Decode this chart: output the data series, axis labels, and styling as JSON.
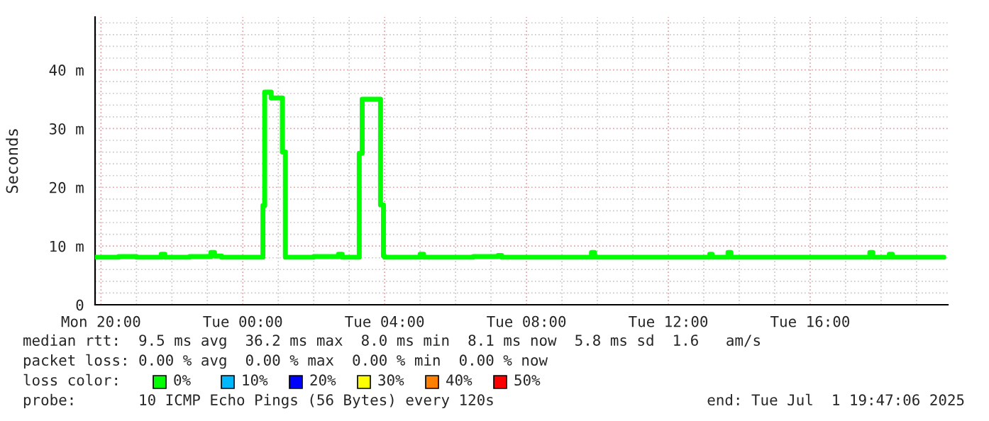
{
  "chart_data": {
    "type": "step",
    "ylabel": "Seconds",
    "x": [
      "2025-06-30T19:50",
      "2025-06-30T20:30",
      "2025-06-30T21:00",
      "2025-06-30T21:42",
      "2025-06-30T21:48",
      "2025-06-30T22:30",
      "2025-06-30T23:06",
      "2025-06-30T23:12",
      "2025-06-30T23:24",
      "2025-07-01T00:34",
      "2025-07-01T00:37",
      "2025-07-01T00:48",
      "2025-07-01T01:07",
      "2025-07-01T01:12",
      "2025-07-01T02:00",
      "2025-07-01T02:42",
      "2025-07-01T02:48",
      "2025-07-01T03:17",
      "2025-07-01T03:22",
      "2025-07-01T03:53",
      "2025-07-01T03:58",
      "2025-07-01T04:00",
      "2025-07-01T05:00",
      "2025-07-01T05:06",
      "2025-07-01T06:30",
      "2025-07-01T07:12",
      "2025-07-01T07:18",
      "2025-07-01T09:50",
      "2025-07-01T09:55",
      "2025-07-01T11:00",
      "2025-07-01T13:10",
      "2025-07-01T13:14",
      "2025-07-01T13:41",
      "2025-07-01T13:46",
      "2025-07-01T15:00",
      "2025-07-01T17:41",
      "2025-07-01T17:46",
      "2025-07-01T18:14",
      "2025-07-01T18:19",
      "2025-07-01T19:46"
    ],
    "series": [
      {
        "name": "0%",
        "color": "#00ff00",
        "values": [
          8.1,
          8.2,
          8.1,
          8.6,
          8.1,
          8.2,
          8.9,
          8.3,
          8.1,
          16.9,
          36.2,
          35.2,
          26.0,
          8.1,
          8.2,
          8.6,
          8.1,
          25.8,
          35.0,
          17.0,
          8.3,
          8.1,
          8.6,
          8.1,
          8.2,
          8.4,
          8.1,
          8.9,
          8.1,
          8.1,
          8.6,
          8.1,
          8.9,
          8.1,
          8.1,
          8.9,
          8.1,
          8.6,
          8.1,
          8.1
        ]
      },
      {
        "name": "10%",
        "color": "#00b8ff",
        "values": [
          null,
          null,
          null,
          null,
          null,
          null,
          null,
          null,
          null,
          null,
          null,
          null,
          null,
          null,
          null,
          null,
          null,
          null,
          null,
          null,
          null,
          null,
          null,
          null,
          null,
          null,
          null,
          null,
          null,
          null,
          null,
          null,
          null,
          null,
          null,
          null,
          null,
          null,
          null,
          null
        ]
      },
      {
        "name": "20%",
        "color": "#0000ff",
        "values": [
          null,
          null,
          null,
          null,
          null,
          null,
          null,
          null,
          null,
          null,
          null,
          null,
          null,
          null,
          null,
          null,
          null,
          null,
          null,
          null,
          null,
          null,
          null,
          null,
          null,
          null,
          null,
          null,
          null,
          null,
          null,
          null,
          null,
          null,
          null,
          null,
          null,
          null,
          null,
          null
        ]
      },
      {
        "name": "30%",
        "color": "#ffff00",
        "values": [
          null,
          null,
          null,
          null,
          null,
          null,
          null,
          null,
          null,
          null,
          null,
          null,
          null,
          null,
          null,
          null,
          null,
          null,
          null,
          null,
          null,
          null,
          null,
          null,
          null,
          null,
          null,
          null,
          null,
          null,
          null,
          null,
          null,
          null,
          null,
          null,
          null,
          null,
          null,
          null
        ]
      },
      {
        "name": "40%",
        "color": "#ff8000",
        "values": [
          null,
          null,
          null,
          null,
          null,
          null,
          null,
          null,
          null,
          null,
          null,
          null,
          null,
          null,
          null,
          null,
          null,
          null,
          null,
          null,
          null,
          null,
          null,
          null,
          null,
          null,
          null,
          null,
          null,
          null,
          null,
          null,
          null,
          null,
          null,
          null,
          null,
          null,
          null,
          null
        ]
      },
      {
        "name": "50%",
        "color": "#ff0000",
        "values": [
          null,
          null,
          null,
          null,
          null,
          null,
          null,
          null,
          null,
          null,
          null,
          null,
          null,
          null,
          null,
          null,
          null,
          null,
          null,
          null,
          null,
          null,
          null,
          null,
          null,
          null,
          null,
          null,
          null,
          null,
          null,
          null,
          null,
          null,
          null,
          null,
          null,
          null,
          null,
          null
        ]
      }
    ],
    "xlim": [
      "2025-06-30T19:50",
      "2025-07-01T19:53"
    ],
    "ylim": [
      0,
      49
    ],
    "xticks": [
      {
        "value": "2025-06-30T20:00",
        "label": "Mon 20:00"
      },
      {
        "value": "2025-06-30T21:00",
        "label": null
      },
      {
        "value": "2025-06-30T22:00",
        "label": null
      },
      {
        "value": "2025-06-30T23:00",
        "label": null
      },
      {
        "value": "2025-07-01T00:00",
        "label": "Tue 00:00"
      },
      {
        "value": "2025-07-01T01:00",
        "label": null
      },
      {
        "value": "2025-07-01T02:00",
        "label": null
      },
      {
        "value": "2025-07-01T03:00",
        "label": null
      },
      {
        "value": "2025-07-01T04:00",
        "label": "Tue 04:00"
      },
      {
        "value": "2025-07-01T05:00",
        "label": null
      },
      {
        "value": "2025-07-01T06:00",
        "label": null
      },
      {
        "value": "2025-07-01T07:00",
        "label": null
      },
      {
        "value": "2025-07-01T08:00",
        "label": "Tue 08:00"
      },
      {
        "value": "2025-07-01T09:00",
        "label": null
      },
      {
        "value": "2025-07-01T10:00",
        "label": null
      },
      {
        "value": "2025-07-01T11:00",
        "label": null
      },
      {
        "value": "2025-07-01T12:00",
        "label": "Tue 12:00"
      },
      {
        "value": "2025-07-01T13:00",
        "label": null
      },
      {
        "value": "2025-07-01T14:00",
        "label": null
      },
      {
        "value": "2025-07-01T15:00",
        "label": null
      },
      {
        "value": "2025-07-01T16:00",
        "label": "Tue 16:00"
      },
      {
        "value": "2025-07-01T17:00",
        "label": null
      },
      {
        "value": "2025-07-01T18:00",
        "label": null
      },
      {
        "value": "2025-07-01T19:00",
        "label": null
      }
    ],
    "yticks": [
      0,
      {
        "value": 2,
        "label": null
      },
      {
        "value": 4,
        "label": null
      },
      {
        "value": 6,
        "label": null
      },
      {
        "value": 8,
        "label": null
      },
      {
        "value": 10,
        "label": "10 m"
      },
      {
        "value": 12,
        "label": null
      },
      {
        "value": 14,
        "label": null
      },
      {
        "value": 16,
        "label": null
      },
      {
        "value": 18,
        "label": null
      },
      {
        "value": 20,
        "label": "20 m"
      },
      {
        "value": 22,
        "label": null
      },
      {
        "value": 24,
        "label": null
      },
      {
        "value": 26,
        "label": null
      },
      {
        "value": 28,
        "label": null
      },
      {
        "value": 30,
        "label": "30 m"
      },
      {
        "value": 32,
        "label": null
      },
      {
        "value": 34,
        "label": null
      },
      {
        "value": 36,
        "label": null
      },
      {
        "value": 38,
        "label": null
      },
      {
        "value": 40,
        "label": "40 m"
      },
      {
        "value": 42,
        "label": null
      },
      {
        "value": 44,
        "label": null
      },
      {
        "value": 46,
        "label": null
      },
      {
        "value": 48,
        "label": null
      }
    ],
    "grid": true,
    "legend": "bottom",
    "legend_title": "loss color:",
    "line_style": "solid",
    "marker": "none",
    "annotations": [
      "median rtt:  9.5 ms avg  36.2 ms max  8.0 ms min  8.1 ms now  5.8 ms sd  1.6   am/s",
      "packet loss: 0.00 % avg  0.00 % max  0.00 % min  0.00 % now",
      "probe:       10 ICMP Echo Pings (56 Bytes) every 120s",
      "end: Tue Jul  1 19:47:06 2025"
    ]
  }
}
